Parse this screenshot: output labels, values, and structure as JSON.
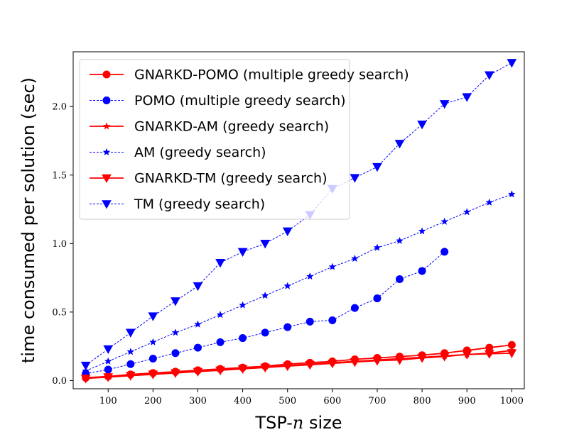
{
  "chart_data": {
    "type": "line",
    "title": "",
    "xlabel_prefix": "TSP-",
    "xlabel_var": "n",
    "xlabel_suffix": " size",
    "ylabel": "time consumed per solution (sec)",
    "xlim": [
      22,
      1028
    ],
    "ylim": [
      -0.06,
      2.4
    ],
    "xticks": [
      100,
      200,
      300,
      400,
      500,
      600,
      700,
      800,
      900,
      1000
    ],
    "yticks": [
      0.0,
      0.5,
      1.0,
      1.5,
      2.0
    ],
    "ytick_labels": [
      "0.0",
      "0.5",
      "1.0",
      "1.5",
      "2.0"
    ],
    "legend_position": "top-left",
    "series": [
      {
        "name": "GNARKD-POMO (multiple greedy search)",
        "color": "#ff0000",
        "marker": "circle",
        "line": "solid",
        "x": [
          50,
          100,
          150,
          200,
          250,
          300,
          350,
          400,
          450,
          500,
          550,
          600,
          650,
          700,
          750,
          800,
          850,
          900,
          950,
          1000
        ],
        "values": [
          0.02,
          0.03,
          0.045,
          0.055,
          0.065,
          0.075,
          0.085,
          0.095,
          0.105,
          0.12,
          0.13,
          0.14,
          0.155,
          0.165,
          0.175,
          0.185,
          0.2,
          0.22,
          0.24,
          0.26
        ]
      },
      {
        "name": "POMO (multiple greedy search)",
        "color": "#0000ff",
        "marker": "circle",
        "line": "dashed",
        "x": [
          50,
          100,
          150,
          200,
          250,
          300,
          350,
          400,
          450,
          500,
          550,
          600,
          650,
          700,
          750,
          800,
          850
        ],
        "values": [
          0.05,
          0.08,
          0.12,
          0.16,
          0.2,
          0.24,
          0.28,
          0.31,
          0.35,
          0.39,
          0.43,
          0.44,
          0.53,
          0.6,
          0.74,
          0.8,
          0.94
        ]
      },
      {
        "name": "GNARKD-AM (greedy search)",
        "color": "#ff0000",
        "marker": "star",
        "line": "solid",
        "x": [
          50,
          100,
          150,
          200,
          250,
          300,
          350,
          400,
          450,
          500,
          550,
          600,
          650,
          700,
          750,
          800,
          850,
          900,
          950,
          1000
        ],
        "values": [
          0.02,
          0.03,
          0.04,
          0.05,
          0.06,
          0.07,
          0.08,
          0.09,
          0.1,
          0.11,
          0.12,
          0.13,
          0.14,
          0.15,
          0.16,
          0.17,
          0.18,
          0.19,
          0.2,
          0.22
        ]
      },
      {
        "name": "AM (greedy search)",
        "color": "#0000ff",
        "marker": "star",
        "line": "dashed",
        "x": [
          50,
          100,
          150,
          200,
          250,
          300,
          350,
          400,
          450,
          500,
          550,
          600,
          650,
          700,
          750,
          800,
          850,
          900,
          950,
          1000
        ],
        "values": [
          0.07,
          0.14,
          0.21,
          0.28,
          0.35,
          0.41,
          0.48,
          0.55,
          0.62,
          0.69,
          0.76,
          0.83,
          0.89,
          0.97,
          1.02,
          1.09,
          1.16,
          1.23,
          1.3,
          1.36
        ]
      },
      {
        "name": "GNARKD-TM (greedy search)",
        "color": "#ff0000",
        "marker": "triangle-down",
        "line": "solid",
        "x": [
          50,
          100,
          150,
          200,
          250,
          300,
          350,
          400,
          450,
          500,
          550,
          600,
          650,
          700,
          750,
          800,
          850,
          900,
          950,
          1000
        ],
        "values": [
          0.015,
          0.025,
          0.035,
          0.045,
          0.055,
          0.065,
          0.075,
          0.085,
          0.095,
          0.105,
          0.115,
          0.125,
          0.135,
          0.145,
          0.15,
          0.165,
          0.175,
          0.19,
          0.195,
          0.2
        ]
      },
      {
        "name": "TM (greedy search)",
        "color": "#0000ff",
        "marker": "triangle-down",
        "line": "dashed",
        "x": [
          50,
          100,
          150,
          200,
          250,
          300,
          350,
          400,
          450,
          500,
          550,
          600,
          650,
          700,
          750,
          800,
          850,
          900,
          950,
          1000
        ],
        "values": [
          0.11,
          0.23,
          0.35,
          0.47,
          0.58,
          0.69,
          0.86,
          0.94,
          1.0,
          1.09,
          1.21,
          1.4,
          1.48,
          1.56,
          1.73,
          1.87,
          2.02,
          2.07,
          2.23,
          2.32
        ]
      }
    ]
  }
}
